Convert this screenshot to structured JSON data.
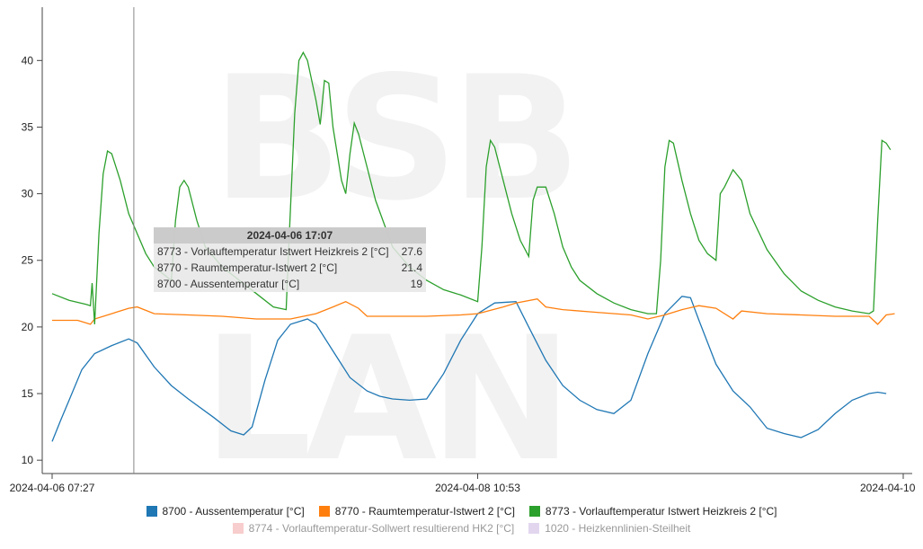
{
  "watermark": "BSB LAN",
  "chart_data": {
    "type": "line",
    "ylim": [
      9,
      44
    ],
    "yticks": [
      10,
      15,
      20,
      25,
      30,
      35,
      40
    ],
    "xticks": [
      "2024-04-06 07:27",
      "2024-04-08 10:53",
      "2024-04-10"
    ],
    "cursor_x": 0.096,
    "series": [
      {
        "name": "8700 - Aussentemperatur [°C]",
        "color": "#1f77b4",
        "visible": true,
        "points": [
          [
            0,
            11.4
          ],
          [
            0.01,
            13
          ],
          [
            0.02,
            14.5
          ],
          [
            0.035,
            16.8
          ],
          [
            0.05,
            18
          ],
          [
            0.07,
            18.6
          ],
          [
            0.09,
            19.1
          ],
          [
            0.1,
            18.8
          ],
          [
            0.12,
            17
          ],
          [
            0.14,
            15.6
          ],
          [
            0.16,
            14.6
          ],
          [
            0.19,
            13.2
          ],
          [
            0.21,
            12.2
          ],
          [
            0.225,
            11.9
          ],
          [
            0.235,
            12.5
          ],
          [
            0.25,
            16
          ],
          [
            0.265,
            19
          ],
          [
            0.28,
            20.2
          ],
          [
            0.3,
            20.6
          ],
          [
            0.31,
            20.2
          ],
          [
            0.33,
            18.2
          ],
          [
            0.35,
            16.2
          ],
          [
            0.37,
            15.2
          ],
          [
            0.385,
            14.8
          ],
          [
            0.4,
            14.6
          ],
          [
            0.42,
            14.5
          ],
          [
            0.44,
            14.6
          ],
          [
            0.46,
            16.5
          ],
          [
            0.48,
            19
          ],
          [
            0.5,
            21
          ],
          [
            0.52,
            21.8
          ],
          [
            0.545,
            21.9
          ],
          [
            0.56,
            20
          ],
          [
            0.58,
            17.5
          ],
          [
            0.6,
            15.6
          ],
          [
            0.62,
            14.5
          ],
          [
            0.64,
            13.8
          ],
          [
            0.66,
            13.5
          ],
          [
            0.68,
            14.5
          ],
          [
            0.7,
            18
          ],
          [
            0.72,
            21
          ],
          [
            0.74,
            22.3
          ],
          [
            0.75,
            22.2
          ],
          [
            0.76,
            20.5
          ],
          [
            0.78,
            17.2
          ],
          [
            0.8,
            15.2
          ],
          [
            0.82,
            14
          ],
          [
            0.84,
            12.4
          ],
          [
            0.86,
            12
          ],
          [
            0.88,
            11.7
          ],
          [
            0.9,
            12.3
          ],
          [
            0.92,
            13.5
          ],
          [
            0.94,
            14.5
          ],
          [
            0.96,
            15
          ],
          [
            0.97,
            15.1
          ],
          [
            0.98,
            15
          ]
        ]
      },
      {
        "name": "8770 - Raumtemperatur-Istwert 2 [°C]",
        "color": "#ff7f0e",
        "visible": true,
        "points": [
          [
            0,
            20.5
          ],
          [
            0.03,
            20.5
          ],
          [
            0.045,
            20.2
          ],
          [
            0.05,
            20.6
          ],
          [
            0.07,
            21
          ],
          [
            0.09,
            21.4
          ],
          [
            0.1,
            21.5
          ],
          [
            0.12,
            21
          ],
          [
            0.16,
            20.9
          ],
          [
            0.2,
            20.8
          ],
          [
            0.24,
            20.6
          ],
          [
            0.28,
            20.6
          ],
          [
            0.31,
            21
          ],
          [
            0.33,
            21.5
          ],
          [
            0.345,
            21.9
          ],
          [
            0.36,
            21.4
          ],
          [
            0.37,
            20.8
          ],
          [
            0.4,
            20.8
          ],
          [
            0.44,
            20.8
          ],
          [
            0.48,
            20.9
          ],
          [
            0.5,
            21
          ],
          [
            0.53,
            21.5
          ],
          [
            0.545,
            21.8
          ],
          [
            0.57,
            22.1
          ],
          [
            0.58,
            21.5
          ],
          [
            0.6,
            21.3
          ],
          [
            0.64,
            21.1
          ],
          [
            0.68,
            20.9
          ],
          [
            0.7,
            20.6
          ],
          [
            0.72,
            20.9
          ],
          [
            0.74,
            21.3
          ],
          [
            0.76,
            21.6
          ],
          [
            0.78,
            21.4
          ],
          [
            0.8,
            20.6
          ],
          [
            0.81,
            21.2
          ],
          [
            0.84,
            21
          ],
          [
            0.88,
            20.9
          ],
          [
            0.92,
            20.8
          ],
          [
            0.96,
            20.8
          ],
          [
            0.97,
            20.2
          ],
          [
            0.98,
            20.9
          ],
          [
            0.99,
            21
          ]
        ]
      },
      {
        "name": "8773 - Vorlauftemperatur Istwert Heizkreis 2 [°C]",
        "color": "#2ca02c",
        "visible": true,
        "points": [
          [
            0,
            22.5
          ],
          [
            0.02,
            22
          ],
          [
            0.04,
            21.7
          ],
          [
            0.045,
            21.6
          ],
          [
            0.047,
            23.3
          ],
          [
            0.05,
            20.2
          ],
          [
            0.055,
            27
          ],
          [
            0.06,
            31.5
          ],
          [
            0.065,
            33.2
          ],
          [
            0.07,
            33
          ],
          [
            0.08,
            31
          ],
          [
            0.09,
            28.5
          ],
          [
            0.1,
            27
          ],
          [
            0.11,
            25.5
          ],
          [
            0.12,
            24.5
          ],
          [
            0.14,
            23.5
          ],
          [
            0.145,
            28
          ],
          [
            0.15,
            30.5
          ],
          [
            0.155,
            31
          ],
          [
            0.16,
            30.5
          ],
          [
            0.17,
            28
          ],
          [
            0.18,
            26
          ],
          [
            0.2,
            24.5
          ],
          [
            0.22,
            23.5
          ],
          [
            0.24,
            22.5
          ],
          [
            0.26,
            21.5
          ],
          [
            0.275,
            21.3
          ],
          [
            0.278,
            26
          ],
          [
            0.285,
            36
          ],
          [
            0.29,
            40
          ],
          [
            0.295,
            40.6
          ],
          [
            0.3,
            40
          ],
          [
            0.31,
            37
          ],
          [
            0.315,
            35.2
          ],
          [
            0.32,
            38.5
          ],
          [
            0.325,
            38.3
          ],
          [
            0.33,
            35
          ],
          [
            0.34,
            31
          ],
          [
            0.345,
            30
          ],
          [
            0.35,
            33
          ],
          [
            0.355,
            35.3
          ],
          [
            0.36,
            34.5
          ],
          [
            0.37,
            32
          ],
          [
            0.38,
            29.5
          ],
          [
            0.4,
            26
          ],
          [
            0.42,
            24.5
          ],
          [
            0.44,
            23.5
          ],
          [
            0.46,
            22.8
          ],
          [
            0.48,
            22.4
          ],
          [
            0.5,
            21.9
          ],
          [
            0.505,
            26
          ],
          [
            0.51,
            32
          ],
          [
            0.515,
            34
          ],
          [
            0.52,
            33.5
          ],
          [
            0.53,
            31
          ],
          [
            0.54,
            28.5
          ],
          [
            0.55,
            26.5
          ],
          [
            0.56,
            25.3
          ],
          [
            0.565,
            29.5
          ],
          [
            0.57,
            30.5
          ],
          [
            0.58,
            30.5
          ],
          [
            0.59,
            28.5
          ],
          [
            0.6,
            26
          ],
          [
            0.61,
            24.5
          ],
          [
            0.62,
            23.5
          ],
          [
            0.64,
            22.5
          ],
          [
            0.66,
            21.8
          ],
          [
            0.68,
            21.3
          ],
          [
            0.7,
            21
          ],
          [
            0.71,
            21
          ],
          [
            0.715,
            25
          ],
          [
            0.72,
            32
          ],
          [
            0.725,
            34
          ],
          [
            0.73,
            33.8
          ],
          [
            0.74,
            31
          ],
          [
            0.75,
            28.5
          ],
          [
            0.76,
            26.5
          ],
          [
            0.77,
            25.5
          ],
          [
            0.78,
            25
          ],
          [
            0.785,
            30
          ],
          [
            0.79,
            30.5
          ],
          [
            0.8,
            31.8
          ],
          [
            0.81,
            31
          ],
          [
            0.82,
            28.5
          ],
          [
            0.84,
            25.8
          ],
          [
            0.86,
            24
          ],
          [
            0.88,
            22.7
          ],
          [
            0.9,
            22
          ],
          [
            0.92,
            21.5
          ],
          [
            0.94,
            21.2
          ],
          [
            0.96,
            21
          ],
          [
            0.965,
            21.2
          ],
          [
            0.97,
            28
          ],
          [
            0.975,
            34
          ],
          [
            0.98,
            33.8
          ],
          [
            0.985,
            33.3
          ]
        ]
      },
      {
        "name": "8774 - Vorlauftemperatur-Sollwert resultierend HK2 [°C]",
        "color": "#f29b9b",
        "visible": false,
        "points": []
      },
      {
        "name": "1020 - Heizkennlinien-Steilheit",
        "color": "#c5aee0",
        "visible": false,
        "points": []
      }
    ],
    "tooltip": {
      "title": "2024-04-06 17:07",
      "rows": [
        {
          "label": "8773 - Vorlauftemperatur Istwert Heizkreis 2 [°C]",
          "value": "27.6"
        },
        {
          "label": "8770 - Raumtemperatur-Istwert 2 [°C]",
          "value": "21.4"
        },
        {
          "label": "8700 - Aussentemperatur [°C]",
          "value": "19"
        }
      ]
    }
  }
}
